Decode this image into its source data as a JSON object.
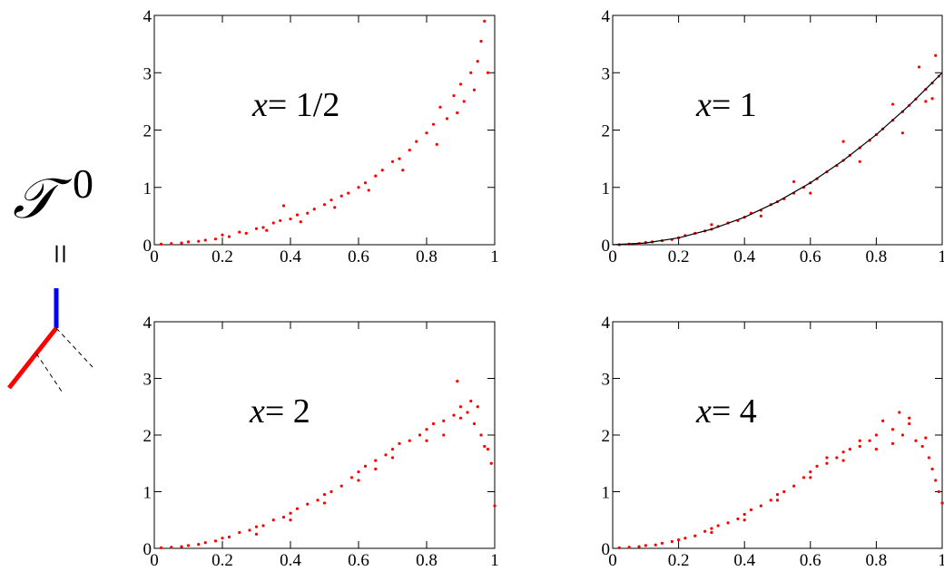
{
  "diagram": {
    "symbol": "𝒯",
    "superscript": "0",
    "relation": "="
  },
  "chart_data": [
    {
      "type": "scatter",
      "annotation_var": "x",
      "annotation": "= 1/2",
      "color": "#ff0000",
      "xlim": [
        0,
        1
      ],
      "ylim": [
        0,
        4
      ],
      "xticks": [
        0,
        0.2,
        0.4,
        0.6,
        0.8,
        1
      ],
      "yticks": [
        0,
        1,
        2,
        3,
        4
      ],
      "x": [
        0.02,
        0.05,
        0.08,
        0.1,
        0.13,
        0.15,
        0.18,
        0.2,
        0.22,
        0.25,
        0.27,
        0.3,
        0.32,
        0.35,
        0.37,
        0.38,
        0.4,
        0.42,
        0.45,
        0.47,
        0.5,
        0.52,
        0.55,
        0.57,
        0.6,
        0.62,
        0.65,
        0.67,
        0.7,
        0.72,
        0.75,
        0.77,
        0.8,
        0.82,
        0.84,
        0.86,
        0.88,
        0.9,
        0.91,
        0.93,
        0.95,
        0.96,
        0.97,
        0.98,
        0.33,
        0.43,
        0.53,
        0.63,
        0.73,
        0.83,
        0.89,
        0.94
      ],
      "values": [
        0.01,
        0.02,
        0.03,
        0.05,
        0.06,
        0.08,
        0.1,
        0.17,
        0.14,
        0.22,
        0.2,
        0.28,
        0.3,
        0.38,
        0.42,
        0.68,
        0.45,
        0.52,
        0.55,
        0.62,
        0.7,
        0.78,
        0.85,
        0.9,
        1.0,
        1.08,
        1.2,
        1.3,
        1.45,
        1.5,
        1.65,
        1.8,
        1.95,
        2.1,
        2.4,
        2.2,
        2.6,
        2.8,
        2.5,
        3.0,
        3.2,
        3.55,
        3.9,
        3.0,
        0.25,
        0.4,
        0.65,
        0.95,
        1.3,
        1.75,
        2.3,
        2.7
      ]
    },
    {
      "type": "scatter",
      "annotation_var": "x",
      "annotation": "= 1",
      "color": "#ff0000",
      "xlim": [
        0,
        1
      ],
      "ylim": [
        0,
        4
      ],
      "xticks": [
        0,
        0.2,
        0.4,
        0.6,
        0.8,
        1
      ],
      "yticks": [
        0,
        1,
        2,
        3,
        4
      ],
      "x": [
        0.02,
        0.05,
        0.08,
        0.1,
        0.12,
        0.15,
        0.18,
        0.2,
        0.22,
        0.25,
        0.28,
        0.3,
        0.32,
        0.35,
        0.38,
        0.4,
        0.42,
        0.45,
        0.48,
        0.5,
        0.52,
        0.55,
        0.58,
        0.6,
        0.62,
        0.65,
        0.68,
        0.7,
        0.72,
        0.75,
        0.78,
        0.8,
        0.82,
        0.85,
        0.88,
        0.9,
        0.92,
        0.95,
        0.97,
        0.99,
        0.3,
        0.45,
        0.55,
        0.6,
        0.7,
        0.75,
        0.85,
        0.88,
        0.93,
        0.95,
        0.98,
        0.97
      ],
      "values": [
        0.0,
        0.01,
        0.02,
        0.04,
        0.05,
        0.07,
        0.09,
        0.12,
        0.16,
        0.2,
        0.24,
        0.27,
        0.32,
        0.38,
        0.42,
        0.48,
        0.55,
        0.6,
        0.7,
        0.75,
        0.8,
        0.9,
        1.0,
        1.08,
        1.15,
        1.27,
        1.38,
        1.47,
        1.56,
        1.69,
        1.82,
        1.92,
        2.02,
        2.17,
        2.32,
        2.43,
        2.54,
        2.71,
        2.82,
        2.94,
        0.35,
        0.5,
        1.1,
        0.9,
        1.8,
        1.45,
        2.45,
        1.95,
        3.1,
        2.5,
        3.3,
        2.55
      ],
      "fit": {
        "color": "#000000",
        "x": [
          0,
          0.1,
          0.2,
          0.3,
          0.4,
          0.5,
          0.6,
          0.7,
          0.8,
          0.9,
          1
        ],
        "values": [
          0,
          0.03,
          0.12,
          0.27,
          0.48,
          0.75,
          1.08,
          1.47,
          1.92,
          2.43,
          3
        ]
      }
    },
    {
      "type": "scatter",
      "annotation_var": "x",
      "annotation": "= 2",
      "color": "#ff0000",
      "xlim": [
        0,
        1
      ],
      "ylim": [
        0,
        4
      ],
      "xticks": [
        0,
        0.2,
        0.4,
        0.6,
        0.8,
        1
      ],
      "yticks": [
        0,
        1,
        2,
        3,
        4
      ],
      "x": [
        0.02,
        0.05,
        0.08,
        0.1,
        0.13,
        0.15,
        0.18,
        0.2,
        0.22,
        0.25,
        0.28,
        0.3,
        0.32,
        0.35,
        0.38,
        0.4,
        0.42,
        0.45,
        0.48,
        0.5,
        0.52,
        0.55,
        0.58,
        0.6,
        0.62,
        0.65,
        0.68,
        0.7,
        0.72,
        0.75,
        0.78,
        0.8,
        0.82,
        0.85,
        0.88,
        0.89,
        0.9,
        0.92,
        0.94,
        0.95,
        0.96,
        0.97,
        0.98,
        0.99,
        1.0,
        0.3,
        0.4,
        0.5,
        0.6,
        0.65,
        0.7,
        0.8,
        0.85,
        0.9,
        0.93
      ],
      "values": [
        0.01,
        0.02,
        0.03,
        0.05,
        0.07,
        0.1,
        0.13,
        0.18,
        0.2,
        0.28,
        0.32,
        0.38,
        0.4,
        0.5,
        0.55,
        0.62,
        0.7,
        0.78,
        0.85,
        0.95,
        1.0,
        1.1,
        1.25,
        1.35,
        1.45,
        1.55,
        1.65,
        1.75,
        1.85,
        1.9,
        2.0,
        2.1,
        2.2,
        2.25,
        2.35,
        2.95,
        2.3,
        2.4,
        2.2,
        2.5,
        2.0,
        1.8,
        1.75,
        1.5,
        0.75,
        0.25,
        0.5,
        0.8,
        1.2,
        1.4,
        1.6,
        1.9,
        2.0,
        2.5,
        2.6
      ]
    },
    {
      "type": "scatter",
      "annotation_var": "x",
      "annotation": "= 4",
      "color": "#ff0000",
      "xlim": [
        0,
        1
      ],
      "ylim": [
        0,
        4
      ],
      "xticks": [
        0,
        0.2,
        0.4,
        0.6,
        0.8,
        1
      ],
      "yticks": [
        0,
        1,
        2,
        3,
        4
      ],
      "x": [
        0.02,
        0.05,
        0.08,
        0.1,
        0.13,
        0.15,
        0.18,
        0.2,
        0.22,
        0.25,
        0.28,
        0.3,
        0.32,
        0.35,
        0.38,
        0.4,
        0.42,
        0.45,
        0.48,
        0.5,
        0.52,
        0.55,
        0.58,
        0.6,
        0.62,
        0.65,
        0.68,
        0.7,
        0.72,
        0.75,
        0.78,
        0.8,
        0.82,
        0.85,
        0.87,
        0.88,
        0.9,
        0.92,
        0.94,
        0.95,
        0.96,
        0.97,
        0.98,
        0.99,
        1.0,
        0.3,
        0.4,
        0.5,
        0.6,
        0.65,
        0.7,
        0.75,
        0.8,
        0.85,
        0.9
      ],
      "values": [
        0.01,
        0.02,
        0.03,
        0.05,
        0.06,
        0.09,
        0.12,
        0.15,
        0.18,
        0.22,
        0.3,
        0.35,
        0.4,
        0.45,
        0.52,
        0.6,
        0.68,
        0.75,
        0.85,
        0.95,
        1.0,
        1.1,
        1.25,
        1.35,
        1.45,
        1.5,
        1.6,
        1.7,
        1.75,
        1.8,
        1.9,
        2.0,
        2.25,
        2.1,
        2.4,
        2.0,
        2.2,
        1.9,
        1.8,
        1.95,
        1.6,
        1.4,
        1.2,
        1.0,
        0.8,
        0.28,
        0.5,
        0.85,
        1.25,
        1.6,
        1.55,
        1.9,
        1.75,
        1.85,
        2.3
      ]
    }
  ]
}
